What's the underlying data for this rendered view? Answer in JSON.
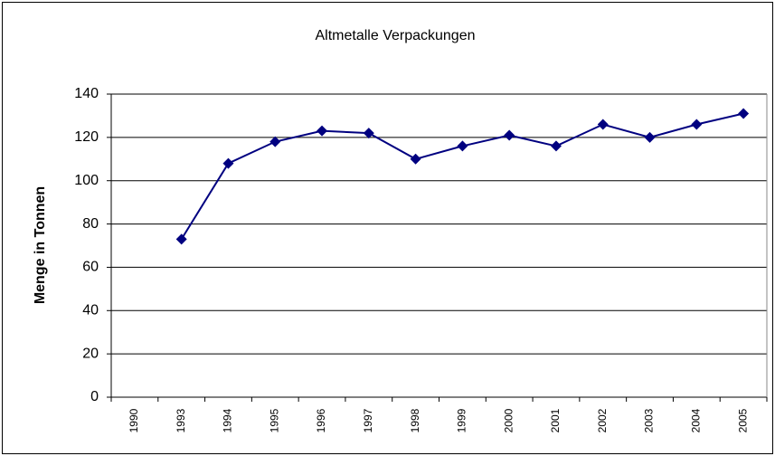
{
  "chart_data": {
    "type": "line",
    "title": "Altmetalle Verpackungen",
    "y_label": "Menge in Tonnen",
    "categories": [
      "1990",
      "1993",
      "1994",
      "1995",
      "1996",
      "1997",
      "1998",
      "1999",
      "2000",
      "2001",
      "2002",
      "2003",
      "2004",
      "2005"
    ],
    "series": [
      {
        "name": "Altmetalle Verpackungen",
        "color": "#000080",
        "values": [
          null,
          73,
          108,
          118,
          123,
          122,
          110,
          116,
          121,
          116,
          126,
          120,
          126,
          131
        ]
      }
    ],
    "ylim": [
      0,
      140
    ],
    "yticks": [
      0,
      20,
      40,
      60,
      80,
      100,
      120,
      140
    ],
    "grid": true
  }
}
